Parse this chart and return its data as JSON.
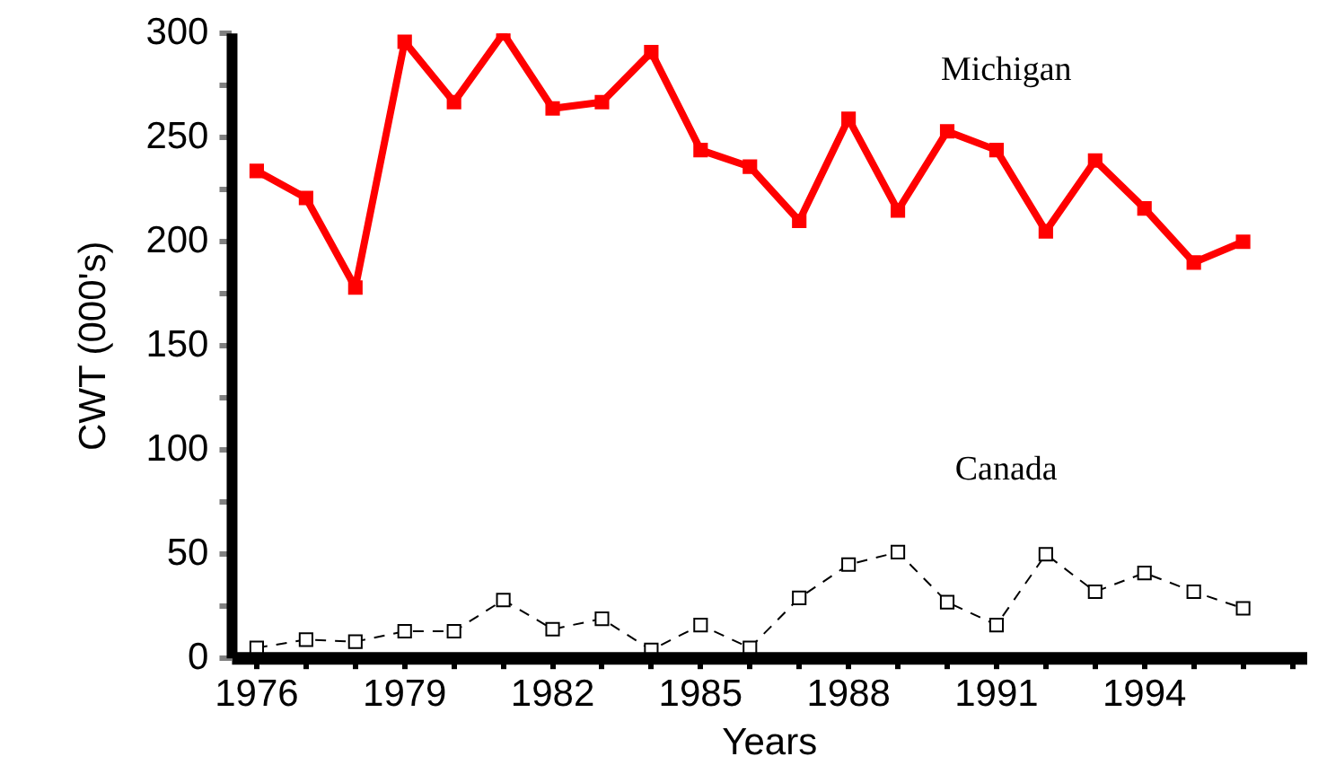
{
  "chart_data": {
    "type": "line",
    "xlabel": "Years",
    "ylabel": "CWT (000's)",
    "x": [
      1976,
      1977,
      1978,
      1979,
      1980,
      1981,
      1982,
      1983,
      1984,
      1985,
      1986,
      1987,
      1988,
      1989,
      1990,
      1991,
      1992,
      1993,
      1994,
      1995,
      1996
    ],
    "series": [
      {
        "name": "Michigan",
        "color": "#ff0000",
        "marker": "square",
        "line_style": "solid",
        "values": [
          234,
          221,
          178,
          296,
          267,
          300,
          264,
          267,
          291,
          244,
          236,
          210,
          259,
          215,
          253,
          244,
          205,
          239,
          216,
          190,
          200
        ]
      },
      {
        "name": "Canada",
        "color": "#000000",
        "marker": "square",
        "line_style": "dashed",
        "values": [
          5,
          9,
          8,
          13,
          13,
          28,
          14,
          19,
          4,
          16,
          5,
          29,
          45,
          51,
          27,
          16,
          50,
          32,
          41,
          32,
          24
        ]
      }
    ],
    "xlim": [
      1975.5,
      1997.3
    ],
    "xticks": [
      1976,
      {
        "value": 1977,
        "label": null
      },
      {
        "value": 1978,
        "label": null
      },
      1979,
      {
        "value": 1980,
        "label": null
      },
      {
        "value": 1981,
        "label": null
      },
      1982,
      {
        "value": 1983,
        "label": null
      },
      {
        "value": 1984,
        "label": null
      },
      1985,
      {
        "value": 1986,
        "label": null
      },
      {
        "value": 1987,
        "label": null
      },
      1988,
      {
        "value": 1989,
        "label": null
      },
      {
        "value": 1990,
        "label": null
      },
      1991,
      {
        "value": 1992,
        "label": null
      },
      {
        "value": 1993,
        "label": null
      },
      1994,
      {
        "value": 1995,
        "label": null
      },
      {
        "value": 1996,
        "label": null
      },
      {
        "value": 1997,
        "label": null
      }
    ],
    "ylim": [
      0,
      300
    ],
    "yticks": [
      0,
      {
        "value": 25,
        "label": null
      },
      50,
      {
        "value": 75,
        "label": null
      },
      100,
      {
        "value": 125,
        "label": null
      },
      150,
      {
        "value": 175,
        "label": null
      },
      200,
      {
        "value": 225,
        "label": null
      },
      250,
      {
        "value": 275,
        "label": null
      },
      300
    ],
    "grid": false,
    "legend": false
  }
}
